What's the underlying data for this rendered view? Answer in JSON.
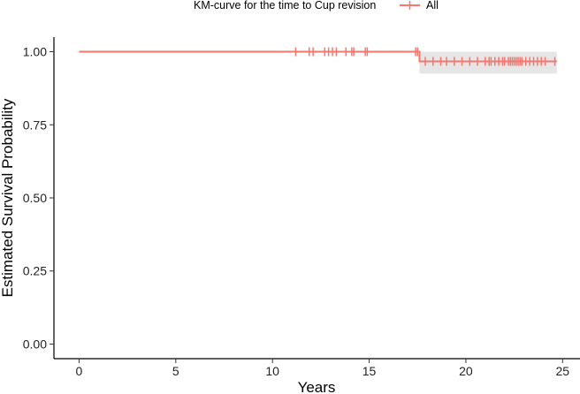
{
  "chart_data": {
    "type": "line",
    "title": "",
    "xlabel": "Years",
    "ylabel": "Estimated Survival Probability",
    "xlim": [
      -1.3,
      25.9
    ],
    "ylim": [
      -0.05,
      1.05
    ],
    "x_ticks": [
      0,
      5,
      10,
      15,
      20,
      25
    ],
    "x_tick_labels": [
      "0",
      "5",
      "10",
      "15",
      "20",
      "25"
    ],
    "y_ticks": [
      0,
      0.25,
      0.5,
      0.75,
      1.0
    ],
    "y_tick_labels": [
      "0.00",
      "0.25",
      "0.50",
      "0.75",
      "1.00"
    ],
    "grid": false,
    "legend": {
      "position": "top",
      "title": "KM-curve for the time to Cup revision",
      "entries": [
        {
          "name": "All",
          "color": "#F8766D"
        }
      ]
    },
    "series": [
      {
        "name": "All",
        "color": "#F8766D",
        "steps": [
          {
            "x": 0,
            "y": 1.0
          },
          {
            "x": 17.6,
            "y": 1.0
          },
          {
            "x": 17.6,
            "y": 0.967
          },
          {
            "x": 24.7,
            "y": 0.967
          }
        ],
        "confidence_band": [
          {
            "x_start": 17.6,
            "x_end": 24.7,
            "lower": 0.925,
            "upper": 1.0
          }
        ],
        "censor_times": [
          11.2,
          11.9,
          12.1,
          12.7,
          12.9,
          13.1,
          13.3,
          13.8,
          14.1,
          14.2,
          14.8,
          14.9,
          17.4,
          17.5,
          17.9,
          18.3,
          18.7,
          19.0,
          19.4,
          19.8,
          20.2,
          20.6,
          21.0,
          21.2,
          21.3,
          21.5,
          21.7,
          21.9,
          22.0,
          22.2,
          22.3,
          22.4,
          22.5,
          22.6,
          22.7,
          22.8,
          22.9,
          23.1,
          23.3,
          23.5,
          23.7,
          23.9,
          24.1,
          24.6
        ]
      }
    ]
  }
}
